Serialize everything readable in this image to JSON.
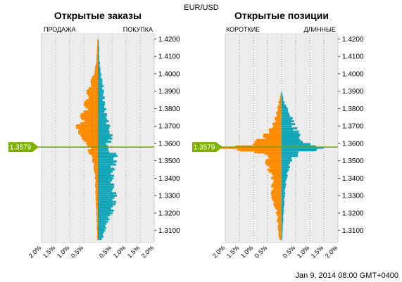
{
  "header": {
    "instrument": "EUR/USD",
    "timestamp": "Jan 9, 2014 08:00 GMT+0400"
  },
  "price_marker": {
    "label": "1.3579",
    "value": 1.3579
  },
  "colors": {
    "short_sell": "#ff8a00",
    "long_buy": "#12a6b8",
    "panel_bg": "#ececec",
    "price_line": "#6ea500",
    "price_label_bg": "#7db000"
  },
  "chart_data": [
    {
      "type": "bar",
      "orientation": "horizontal",
      "title": "Открытые заказы",
      "left_label": "ПРОДАЖА",
      "right_label": "ПОКУПКА",
      "xlim": [
        -2.0,
        2.0
      ],
      "x_ticks": [
        "2.0%",
        "1.5%",
        "1.0%",
        "0.5%",
        "0.5%",
        "1.0%",
        "1.5%",
        "2.0%"
      ],
      "ylim": [
        1.303,
        1.423
      ],
      "y_ticks": [
        "1.4200",
        "1.4100",
        "1.4000",
        "1.3900",
        "1.3800",
        "1.3700",
        "1.3600",
        "1.3500",
        "1.3400",
        "1.3300",
        "1.3200",
        "1.3100"
      ],
      "grid": true,
      "profile": [
        [
          1.419,
          0.02,
          0.03
        ],
        [
          1.414,
          0.03,
          0.04
        ],
        [
          1.41,
          0.04,
          0.04
        ],
        [
          1.406,
          0.06,
          0.06
        ],
        [
          1.402,
          0.1,
          0.08
        ],
        [
          1.398,
          0.18,
          0.12
        ],
        [
          1.394,
          0.26,
          0.16
        ],
        [
          1.39,
          0.33,
          0.18
        ],
        [
          1.386,
          0.38,
          0.2
        ],
        [
          1.382,
          0.42,
          0.22
        ],
        [
          1.378,
          0.48,
          0.26
        ],
        [
          1.374,
          0.56,
          0.3
        ],
        [
          1.37,
          0.66,
          0.36
        ],
        [
          1.367,
          0.6,
          0.4
        ],
        [
          1.364,
          0.52,
          0.44
        ],
        [
          1.361,
          0.4,
          0.4
        ],
        [
          1.3585,
          0.3,
          0.3
        ],
        [
          1.356,
          0.3,
          0.32
        ],
        [
          1.354,
          0.26,
          0.62
        ],
        [
          1.352,
          0.22,
          0.55
        ],
        [
          1.349,
          0.16,
          0.55
        ],
        [
          1.345,
          0.12,
          0.5
        ],
        [
          1.34,
          0.1,
          0.46
        ],
        [
          1.335,
          0.08,
          0.48
        ],
        [
          1.33,
          0.07,
          0.56
        ],
        [
          1.325,
          0.06,
          0.52
        ],
        [
          1.32,
          0.05,
          0.44
        ],
        [
          1.315,
          0.04,
          0.3
        ],
        [
          1.31,
          0.03,
          0.22
        ],
        [
          1.305,
          0.02,
          0.14
        ]
      ]
    },
    {
      "type": "bar",
      "orientation": "horizontal",
      "title": "Открытые позиции",
      "left_label": "КОРОТКИЕ",
      "right_label": "ДЛИННЫЕ",
      "xlim": [
        -2.0,
        2.0
      ],
      "x_ticks": [
        "2.0%",
        "1.5%",
        "1.0%",
        "0.5%",
        "0.5%",
        "1.0%",
        "1.5%",
        "2.0%"
      ],
      "ylim": [
        1.303,
        1.423
      ],
      "y_ticks": [
        "1.4200",
        "1.4100",
        "1.4000",
        "1.3900",
        "1.3800",
        "1.3700",
        "1.3600",
        "1.3500",
        "1.3400",
        "1.3300",
        "1.3200",
        "1.3100"
      ],
      "grid": true,
      "profile": [
        [
          1.389,
          0.02,
          0.02
        ],
        [
          1.386,
          0.06,
          0.05
        ],
        [
          1.383,
          0.1,
          0.1
        ],
        [
          1.38,
          0.14,
          0.18
        ],
        [
          1.377,
          0.18,
          0.26
        ],
        [
          1.374,
          0.24,
          0.34
        ],
        [
          1.371,
          0.3,
          0.4
        ],
        [
          1.368,
          0.4,
          0.5
        ],
        [
          1.365,
          0.55,
          0.55
        ],
        [
          1.362,
          0.75,
          0.65
        ],
        [
          1.3595,
          1.0,
          0.85
        ],
        [
          1.358,
          1.5,
          1.1
        ],
        [
          1.3575,
          1.9,
          1.65
        ],
        [
          1.356,
          1.2,
          1.0
        ],
        [
          1.354,
          0.55,
          0.55
        ],
        [
          1.35,
          0.5,
          0.3
        ],
        [
          1.345,
          0.42,
          0.22
        ],
        [
          1.34,
          0.34,
          0.16
        ],
        [
          1.335,
          0.3,
          0.12
        ],
        [
          1.33,
          0.32,
          0.1
        ],
        [
          1.325,
          0.24,
          0.08
        ],
        [
          1.32,
          0.18,
          0.06
        ],
        [
          1.315,
          0.14,
          0.05
        ],
        [
          1.31,
          0.1,
          0.03
        ],
        [
          1.305,
          0.08,
          0.02
        ]
      ]
    }
  ]
}
